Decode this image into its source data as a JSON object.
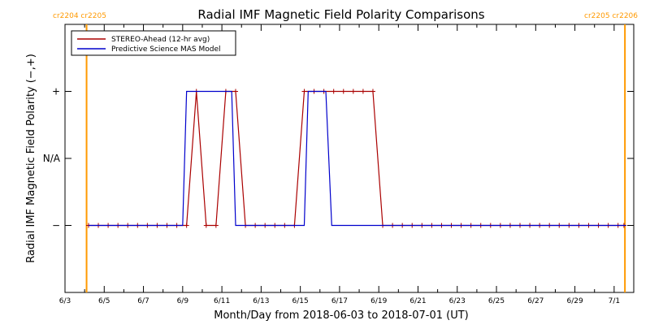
{
  "chart_data": {
    "type": "line",
    "title": "Radial IMF Magnetic Field Polarity Comparisons",
    "xlabel": "Month/Day from 2018-06-03 to 2018-07-01 (UT)",
    "ylabel": "Radial IMF Magnetic Field Polarity (−,+)",
    "x_tick_labels": [
      "6/3",
      "6/5",
      "6/7",
      "6/9",
      "6/11",
      "6/13",
      "6/15",
      "6/17",
      "6/19",
      "6/21",
      "6/23",
      "6/25",
      "6/27",
      "6/29",
      "7/1"
    ],
    "x_ticks_days": [
      0,
      2,
      4,
      6,
      8,
      10,
      12,
      14,
      16,
      18,
      20,
      22,
      24,
      26,
      28
    ],
    "y_tick_labels": [
      "+",
      "N/A",
      "−"
    ],
    "y_levels": {
      "plus": 1,
      "na": 0,
      "minus": -1
    },
    "ylim": [
      -2,
      2
    ],
    "xlim_days": [
      0,
      29
    ],
    "carrington_markers": [
      {
        "day": 1.1,
        "color": "#ff9900",
        "labels": [
          "cr2204",
          "cr2205"
        ],
        "label_side": "left"
      },
      {
        "day": 28.55,
        "color": "#ff9900",
        "labels": [
          "cr2205",
          "cr2206"
        ],
        "label_side": "right"
      }
    ],
    "legend": {
      "placement": "top-left"
    },
    "series": [
      {
        "name": "STEREO-Ahead (12-hr avg)",
        "color": "#aa0000",
        "marker": "plus",
        "x": [
          1.2,
          1.7,
          2.2,
          2.7,
          3.2,
          3.7,
          4.2,
          4.7,
          5.2,
          5.7,
          6.2,
          6.7,
          7.2,
          7.7,
          8.2,
          8.7,
          9.2,
          9.7,
          10.2,
          10.7,
          11.2,
          11.7,
          12.2,
          12.7,
          13.2,
          13.7,
          14.2,
          14.7,
          15.2,
          15.7,
          16.2,
          16.7,
          17.2,
          17.7,
          18.2,
          18.7,
          19.2,
          19.7,
          20.2,
          20.7,
          21.2,
          21.7,
          22.2,
          22.7,
          23.2,
          23.7,
          24.2,
          24.7,
          25.2,
          25.7,
          26.2,
          26.7,
          27.2,
          27.7,
          28.2,
          28.5
        ],
        "y": [
          -1,
          -1,
          -1,
          -1,
          -1,
          -1,
          -1,
          -1,
          -1,
          -1,
          -1,
          1,
          -1,
          -1,
          1,
          1,
          -1,
          -1,
          -1,
          -1,
          -1,
          -1,
          1,
          1,
          1,
          1,
          1,
          1,
          1,
          1,
          -1,
          -1,
          -1,
          -1,
          -1,
          -1,
          -1,
          -1,
          -1,
          -1,
          -1,
          -1,
          -1,
          -1,
          -1,
          -1,
          -1,
          -1,
          -1,
          -1,
          -1,
          -1,
          -1,
          -1,
          -1,
          -1
        ]
      },
      {
        "name": "Predictive Science MAS Model",
        "color": "#0000cc",
        "marker": "none",
        "x": [
          1.2,
          6.0,
          6.2,
          8.5,
          8.7,
          12.2,
          12.4,
          13.3,
          13.6,
          28.6
        ],
        "y": [
          -1,
          -1,
          1,
          1,
          -1,
          -1,
          1,
          1,
          -1,
          -1
        ]
      }
    ]
  }
}
